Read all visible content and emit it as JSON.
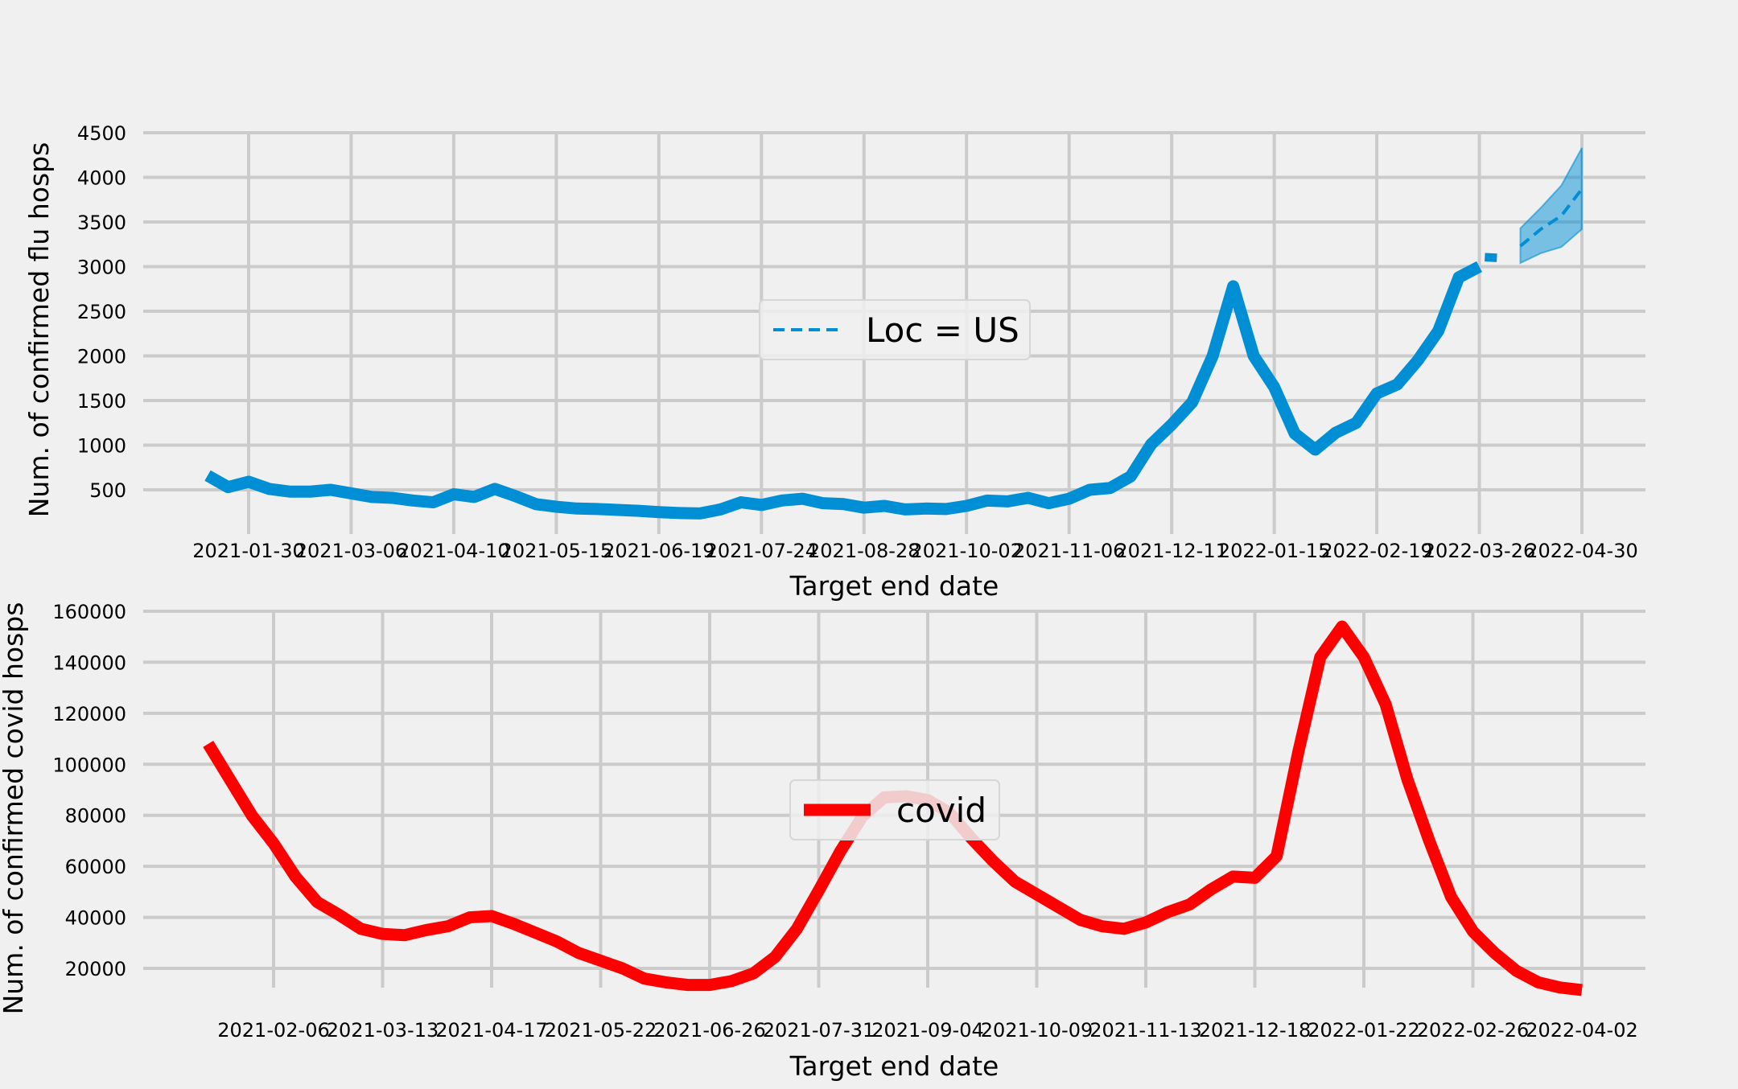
{
  "chart_data": [
    {
      "type": "line",
      "xlabel": "Target end date",
      "ylabel": "Num. of confirmed flu hosps",
      "x_ticks": [
        "2021-01-30",
        "2021-03-06",
        "2021-04-10",
        "2021-05-15",
        "2021-06-19",
        "2021-07-24",
        "2021-08-28",
        "2021-10-02",
        "2021-11-06",
        "2021-12-11",
        "2022-01-15",
        "2022-02-19",
        "2022-03-26",
        "2022-04-30"
      ],
      "y_ticks": [
        500,
        1000,
        1500,
        2000,
        2500,
        3000,
        3500,
        4000,
        4500
      ],
      "ylim": [
        0,
        4500
      ],
      "legend": {
        "label": "Loc = US",
        "placement": "center"
      },
      "series": [
        {
          "name": "",
          "color": "#008fd5",
          "style": "solid",
          "x": [
            "2021-01-16",
            "2021-01-23",
            "2021-01-30",
            "2021-02-06",
            "2021-02-13",
            "2021-02-20",
            "2021-02-27",
            "2021-03-06",
            "2021-03-13",
            "2021-03-20",
            "2021-03-27",
            "2021-04-03",
            "2021-04-10",
            "2021-04-17",
            "2021-04-24",
            "2021-05-01",
            "2021-05-08",
            "2021-05-15",
            "2021-05-22",
            "2021-05-29",
            "2021-06-05",
            "2021-06-12",
            "2021-06-19",
            "2021-06-26",
            "2021-07-03",
            "2021-07-10",
            "2021-07-17",
            "2021-07-24",
            "2021-07-31",
            "2021-08-07",
            "2021-08-14",
            "2021-08-21",
            "2021-08-28",
            "2021-09-04",
            "2021-09-11",
            "2021-09-18",
            "2021-09-25",
            "2021-10-02",
            "2021-10-09",
            "2021-10-16",
            "2021-10-23",
            "2021-10-30",
            "2021-11-06",
            "2021-11-13",
            "2021-11-20",
            "2021-11-27",
            "2021-12-04",
            "2021-12-11",
            "2021-12-18",
            "2021-12-25",
            "2022-01-01",
            "2022-01-08",
            "2022-01-15",
            "2022-01-22",
            "2022-01-29",
            "2022-02-05",
            "2022-02-12",
            "2022-02-19",
            "2022-02-26",
            "2022-03-05",
            "2022-03-12",
            "2022-03-19",
            "2022-03-26"
          ],
          "values": [
            660,
            530,
            590,
            510,
            480,
            480,
            500,
            460,
            420,
            410,
            380,
            360,
            450,
            420,
            510,
            430,
            340,
            310,
            290,
            285,
            275,
            265,
            250,
            240,
            235,
            280,
            360,
            330,
            380,
            400,
            350,
            340,
            300,
            320,
            280,
            290,
            285,
            320,
            380,
            370,
            410,
            350,
            400,
            500,
            520,
            650,
            1010,
            1230,
            1480,
            2000,
            2780,
            2000,
            1650,
            1130,
            950,
            1140,
            1250,
            1580,
            1680,
            1950,
            2280,
            2880,
            3000
          ],
          "extra_point": {
            "x": "2022-03-30",
            "value": 3150
          }
        },
        {
          "name": "Loc = US",
          "color": "#008fd5",
          "style": "dashed",
          "x": [
            "2022-04-09",
            "2022-04-16",
            "2022-04-23",
            "2022-04-30"
          ],
          "values": [
            3230,
            3420,
            3570,
            3870
          ],
          "band_upper": [
            3430,
            3660,
            3910,
            4330
          ],
          "band_lower": [
            3040,
            3150,
            3220,
            3420
          ]
        }
      ]
    },
    {
      "type": "line",
      "xlabel": "Target end date",
      "ylabel": "Num. of confirmed covid hosps",
      "x_ticks": [
        "2021-02-06",
        "2021-03-13",
        "2021-04-17",
        "2021-05-22",
        "2021-06-26",
        "2021-07-31",
        "2021-09-04",
        "2021-10-09",
        "2021-11-13",
        "2021-12-18",
        "2022-01-22",
        "2022-02-26",
        "2022-04-02"
      ],
      "y_ticks": [
        20000,
        40000,
        60000,
        80000,
        100000,
        120000,
        140000,
        160000
      ],
      "ylim": [
        0,
        160000
      ],
      "legend": {
        "label": "covid",
        "placement": "center"
      },
      "series": [
        {
          "name": "covid",
          "color": "#ff0000",
          "x": [
            "2021-01-16",
            "2021-01-23",
            "2021-01-30",
            "2021-02-06",
            "2021-02-13",
            "2021-02-20",
            "2021-02-27",
            "2021-03-06",
            "2021-03-13",
            "2021-03-20",
            "2021-03-27",
            "2021-04-03",
            "2021-04-10",
            "2021-04-17",
            "2021-04-24",
            "2021-05-01",
            "2021-05-08",
            "2021-05-15",
            "2021-05-22",
            "2021-05-29",
            "2021-06-05",
            "2021-06-12",
            "2021-06-19",
            "2021-06-26",
            "2021-07-03",
            "2021-07-10",
            "2021-07-17",
            "2021-07-24",
            "2021-07-31",
            "2021-08-07",
            "2021-08-14",
            "2021-08-21",
            "2021-08-28",
            "2021-09-04",
            "2021-09-11",
            "2021-09-18",
            "2021-09-25",
            "2021-10-02",
            "2021-10-09",
            "2021-10-16",
            "2021-10-23",
            "2021-10-30",
            "2021-11-06",
            "2021-11-13",
            "2021-11-20",
            "2021-11-27",
            "2021-12-04",
            "2021-12-11",
            "2021-12-18",
            "2021-12-25",
            "2022-01-01",
            "2022-01-08",
            "2022-01-15",
            "2022-01-22",
            "2022-01-29",
            "2022-02-05",
            "2022-02-12",
            "2022-02-19",
            "2022-02-26",
            "2022-03-05",
            "2022-03-12",
            "2022-03-19",
            "2022-03-26",
            "2022-04-02"
          ],
          "values": [
            108000,
            94000,
            80000,
            69000,
            56000,
            46000,
            41000,
            35500,
            33500,
            33000,
            35000,
            36500,
            40000,
            40500,
            37500,
            34000,
            30500,
            26000,
            23000,
            20000,
            16000,
            14500,
            13500,
            13500,
            15000,
            18000,
            24500,
            35500,
            50500,
            66000,
            79500,
            87000,
            87500,
            86000,
            81000,
            71000,
            62000,
            54000,
            49000,
            44000,
            39000,
            36500,
            35500,
            38000,
            42000,
            45000,
            51000,
            56000,
            55500,
            64000,
            105000,
            142000,
            154000,
            142000,
            123500,
            94000,
            70000,
            48000,
            34500,
            26000,
            19000,
            14500,
            12500,
            11500
          ]
        }
      ]
    }
  ]
}
